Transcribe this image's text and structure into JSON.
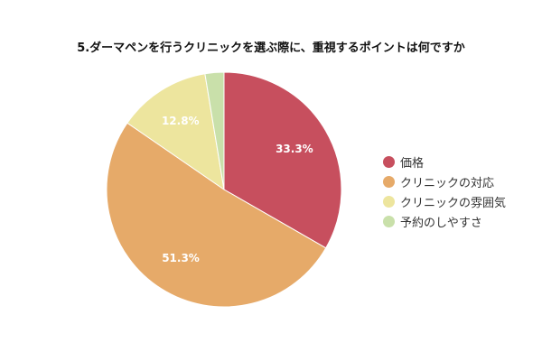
{
  "chart_data": {
    "type": "pie",
    "title": "5.ダーマペンを行うクリニックを選ぶ際に、重視するポイントは何ですか",
    "categories": [
      "価格",
      "クリニックの対応",
      "クリニックの雰囲気",
      "予約のしやすさ"
    ],
    "values": [
      33.3,
      51.3,
      12.8,
      2.6
    ],
    "data_labels": [
      "33.3%",
      "51.3%",
      "12.8%",
      ""
    ],
    "colors": [
      "#c74f5e",
      "#e6aa69",
      "#ede59e",
      "#c9e0aa"
    ],
    "legend_position": "right"
  }
}
